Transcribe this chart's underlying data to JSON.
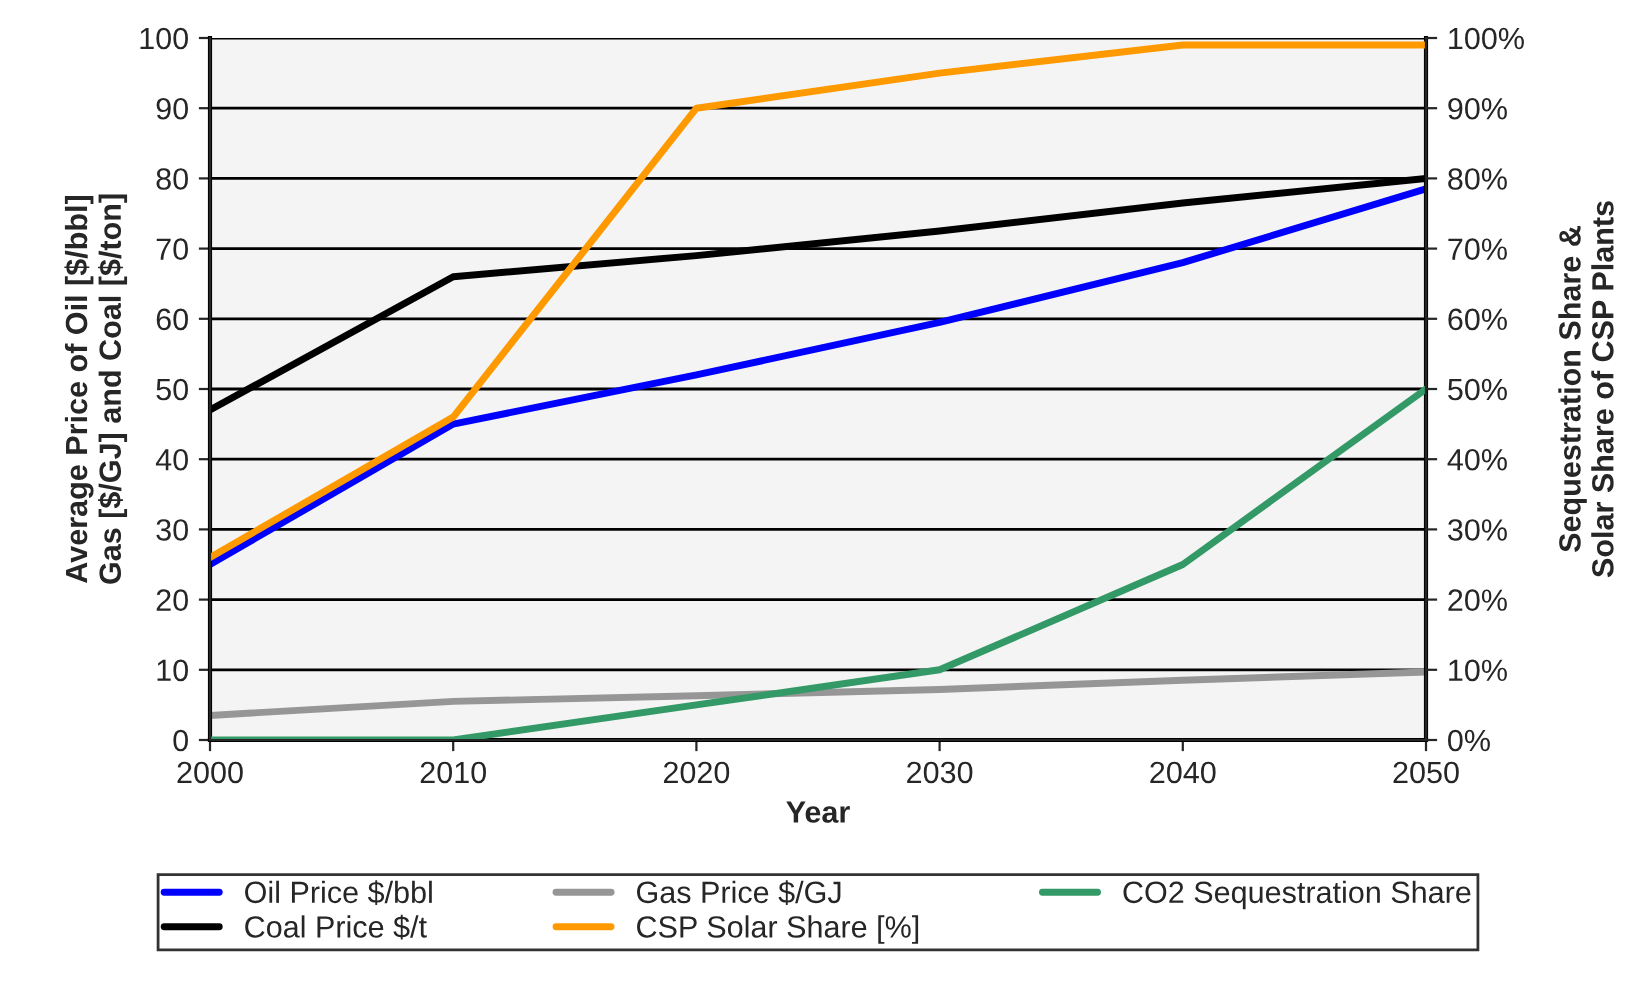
{
  "chart_data": {
    "type": "line",
    "xlabel": "Year",
    "ylabel": "Average Price of Oil [$/bbl]\nGas [$/GJ] and Coal [$/ton]",
    "y2label": "Sequestration Share &\nSolar Share of CSP Plants",
    "x": [
      2000,
      2010,
      2020,
      2030,
      2040,
      2050
    ],
    "series": [
      {
        "name": "Oil Price $/bbl",
        "color": "#0000ff",
        "values": [
          25,
          45,
          52,
          59.5,
          68,
          78.5
        ]
      },
      {
        "name": "Coal Price $/t",
        "color": "#000000",
        "values": [
          47,
          66,
          69,
          72.5,
          76.5,
          80
        ]
      },
      {
        "name": "Gas Price $/GJ",
        "color": "#969696",
        "values": [
          3.5,
          5.5,
          6.3,
          7.2,
          8.5,
          9.7
        ]
      },
      {
        "name": "CSP Solar Share [%]",
        "color": "#ff9900",
        "axis": "y2",
        "values": [
          26,
          46,
          90,
          95,
          99,
          99
        ]
      },
      {
        "name": "CO2 Sequestration Share",
        "color": "#339966",
        "axis": "y2",
        "values": [
          0,
          0,
          5,
          10,
          25,
          50
        ]
      }
    ],
    "xlim": [
      2000,
      2050
    ],
    "xticks": [
      2000,
      2010,
      2020,
      2030,
      2040,
      2050
    ],
    "ylim": [
      0,
      100
    ],
    "yticks": [
      0,
      10,
      20,
      30,
      40,
      50,
      60,
      70,
      80,
      90,
      100
    ],
    "y2lim": [
      0,
      100
    ],
    "y2ticks": [
      {
        "value": 0,
        "label": "0%"
      },
      {
        "value": 10,
        "label": "10%"
      },
      {
        "value": 20,
        "label": "20%"
      },
      {
        "value": 30,
        "label": "30%"
      },
      {
        "value": 40,
        "label": "40%"
      },
      {
        "value": 50,
        "label": "50%"
      },
      {
        "value": 60,
        "label": "60%"
      },
      {
        "value": 70,
        "label": "70%"
      },
      {
        "value": 80,
        "label": "80%"
      },
      {
        "value": 90,
        "label": "90%"
      },
      {
        "value": 100,
        "label": "100%"
      }
    ],
    "grid": "y",
    "legend": "bottom",
    "marker": "none",
    "line_style": "solid"
  }
}
